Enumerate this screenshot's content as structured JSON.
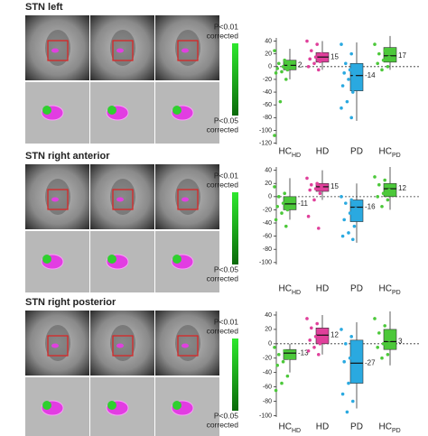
{
  "chart_data": [
    {
      "type": "box",
      "title": "STN left",
      "colorbar_top": [
        "P<0.01",
        "corrected"
      ],
      "colorbar_bottom": [
        "P<0.05",
        "corrected"
      ],
      "categories": [
        "HC",
        "HD",
        "PD",
        "HC"
      ],
      "category_subscripts": [
        "HD",
        null,
        null,
        "PD"
      ],
      "ylim": [
        -122,
        45
      ],
      "yticks": [
        40,
        20,
        0,
        -20,
        -40,
        -60,
        -80,
        -100,
        -120
      ],
      "reference_line": 0,
      "boxes": [
        {
          "color": "#4cc83a",
          "median": 2,
          "q1": -5,
          "q3": 10,
          "whisker_low": -20,
          "whisker_high": 28,
          "points": [
            25,
            10,
            5,
            2,
            0,
            -3,
            -5,
            -8,
            -10,
            -20,
            -55,
            -108
          ]
        },
        {
          "color": "#e0409b",
          "median": 15,
          "q1": 7,
          "q3": 22,
          "whisker_low": -5,
          "whisker_high": 40,
          "points": [
            40,
            35,
            25,
            20,
            15,
            12,
            8,
            5,
            0,
            -5
          ]
        },
        {
          "color": "#2aa9e0",
          "median": -14,
          "q1": -38,
          "q3": 5,
          "whisker_low": -85,
          "whisker_high": 38,
          "points": [
            35,
            20,
            5,
            0,
            -5,
            -10,
            -15,
            -20,
            -30,
            -40,
            -55,
            -65,
            -80
          ]
        },
        {
          "color": "#4cc83a",
          "median": 17,
          "q1": 7,
          "q3": 30,
          "whisker_low": -5,
          "whisker_high": 48,
          "points": [
            35,
            25,
            20,
            15,
            10,
            5,
            0,
            -5
          ]
        }
      ]
    },
    {
      "type": "box",
      "title": "STN right anterior",
      "colorbar_top": [
        "P<0.01",
        "corrected"
      ],
      "colorbar_bottom": [
        "P<0.05",
        "corrected"
      ],
      "categories": [
        "HC",
        "HD",
        "PD",
        "HC"
      ],
      "category_subscripts": [
        "HD",
        null,
        null,
        "PD"
      ],
      "ylim": [
        -103,
        45
      ],
      "yticks": [
        40,
        20,
        0,
        -20,
        -40,
        -60,
        -80,
        -100
      ],
      "reference_line": 0,
      "boxes": [
        {
          "color": "#4cc83a",
          "median": -11,
          "q1": -20,
          "q3": 0,
          "whisker_low": -35,
          "whisker_high": 28,
          "points": [
            15,
            5,
            0,
            -5,
            -10,
            -15,
            -20,
            -25,
            -35,
            -45
          ]
        },
        {
          "color": "#e0409b",
          "median": 15,
          "q1": 8,
          "q3": 20,
          "whisker_low": -5,
          "whisker_high": 40,
          "points": [
            28,
            20,
            18,
            15,
            12,
            10,
            5,
            -5,
            -30,
            -48
          ]
        },
        {
          "color": "#2aa9e0",
          "median": -16,
          "q1": -38,
          "q3": -5,
          "whisker_low": -70,
          "whisker_high": 20,
          "points": [
            0,
            -5,
            -10,
            -18,
            -25,
            -35,
            -45,
            -55,
            -60,
            -65
          ]
        },
        {
          "color": "#4cc83a",
          "median": 12,
          "q1": 0,
          "q3": 20,
          "whisker_low": -20,
          "whisker_high": 45,
          "points": [
            30,
            25,
            18,
            10,
            5,
            0,
            -5,
            -15
          ]
        }
      ]
    },
    {
      "type": "box",
      "title": "STN right posterior",
      "colorbar_top": [
        "P<0.01",
        "corrected"
      ],
      "colorbar_bottom": [
        "P<0.05",
        "corrected"
      ],
      "categories": [
        "HC",
        "HD",
        "PD",
        "HC"
      ],
      "category_subscripts": [
        "HD",
        null,
        null,
        "PD"
      ],
      "ylim": [
        -102,
        45
      ],
      "yticks": [
        40,
        20,
        0,
        -20,
        -40,
        -60,
        -80,
        -100
      ],
      "reference_line": 0,
      "boxes": [
        {
          "color": "#4cc83a",
          "median": -13,
          "q1": -22,
          "q3": -8,
          "whisker_low": -40,
          "whisker_high": 0,
          "points": [
            -5,
            -10,
            -15,
            -20,
            -25,
            -30,
            -45,
            -55,
            -65
          ]
        },
        {
          "color": "#e0409b",
          "median": 12,
          "q1": 0,
          "q3": 22,
          "whisker_low": -15,
          "whisker_high": 40,
          "points": [
            35,
            28,
            22,
            15,
            10,
            5,
            0,
            -5,
            -10,
            -15
          ]
        },
        {
          "color": "#2aa9e0",
          "median": -27,
          "q1": -55,
          "q3": 5,
          "whisker_low": -90,
          "whisker_high": 30,
          "points": [
            20,
            10,
            0,
            -10,
            -20,
            -25,
            -40,
            -55,
            -70,
            -80,
            -95
          ]
        },
        {
          "color": "#4cc83a",
          "median": 3,
          "q1": -8,
          "q3": 20,
          "whisker_low": -30,
          "whisker_high": 45,
          "points": [
            35,
            25,
            15,
            5,
            0,
            -5,
            -15,
            -20
          ]
        }
      ]
    }
  ]
}
